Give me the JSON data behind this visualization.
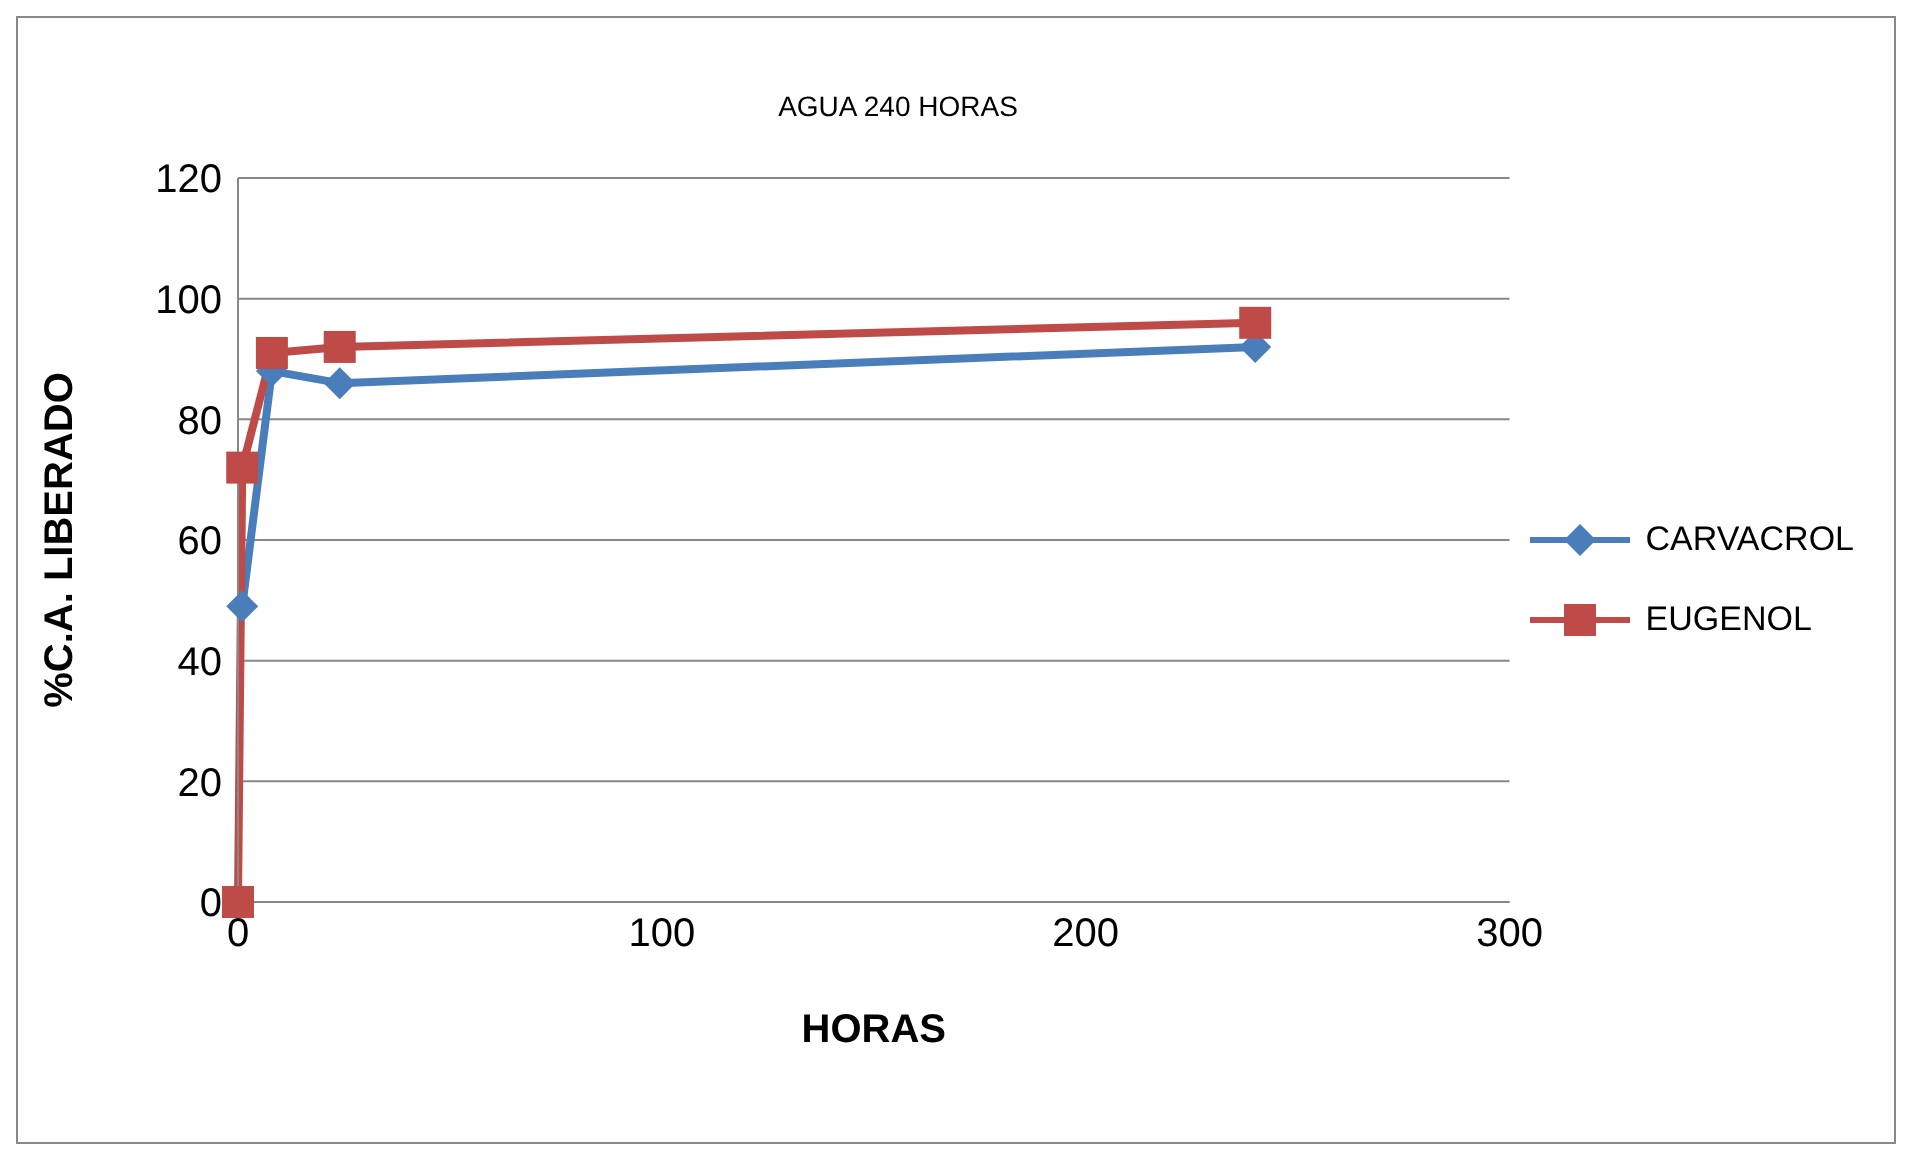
{
  "chart_data": {
    "type": "line",
    "title": "AGUA 240 HORAS",
    "xlabel": "HORAS",
    "ylabel": "%C.A. LIBERADO",
    "series": [
      {
        "name": "CARVACROL",
        "color": "#4a7ebb",
        "marker": "diamond",
        "x": [
          1,
          8,
          24,
          240
        ],
        "values": [
          49,
          88,
          86,
          92
        ]
      },
      {
        "name": "EUGENOL",
        "color": "#be4b48",
        "marker": "square",
        "x": [
          0,
          1,
          8,
          24,
          240
        ],
        "values": [
          0,
          72,
          91,
          92,
          96
        ]
      }
    ],
    "xlim": [
      0,
      300
    ],
    "xticks": [
      0,
      100,
      200,
      300
    ],
    "ylim": [
      0,
      120
    ],
    "yticks": [
      0,
      20,
      40,
      60,
      80,
      100,
      120
    ],
    "grid": "y",
    "legend": "right"
  }
}
